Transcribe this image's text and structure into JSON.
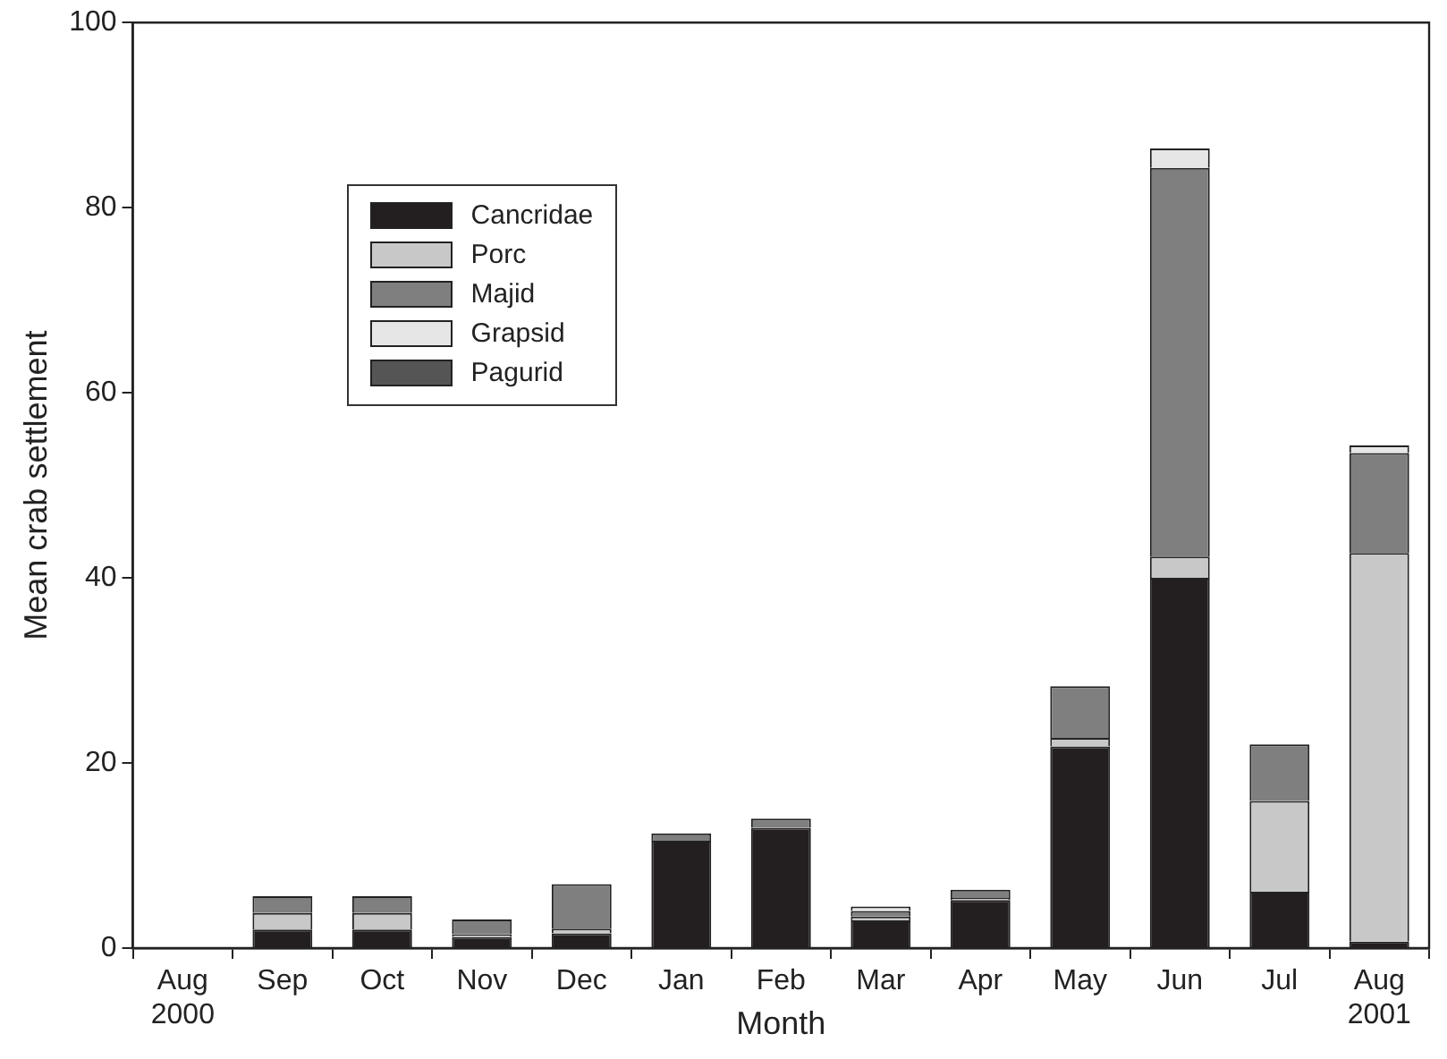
{
  "chart_data": {
    "type": "bar",
    "stacked": true,
    "xlabel": "Month",
    "ylabel": "Mean crab settlement",
    "categories": [
      "Aug\n2000",
      "Sep",
      "Oct",
      "Nov",
      "Dec",
      "Jan",
      "Feb",
      "Mar",
      "Apr",
      "May",
      "Jun",
      "Jul",
      "Aug\n2001"
    ],
    "series": [
      {
        "name": "Cancridae",
        "color": "#231f20",
        "values": [
          0,
          2,
          2,
          1.2,
          1.6,
          11.6,
          13,
          3,
          5.2,
          21.8,
          40,
          6.1,
          0.7
        ]
      },
      {
        "name": "Porc",
        "color": "#c8c8c8",
        "values": [
          0,
          1.8,
          1.8,
          0.3,
          0.5,
          0,
          0,
          0.4,
          0.2,
          0.9,
          2.3,
          9.8,
          42
        ]
      },
      {
        "name": "Majid",
        "color": "#7f7f7f",
        "values": [
          0,
          1.8,
          1.8,
          1.6,
          4.8,
          0.8,
          1,
          0.6,
          0.9,
          5.6,
          42,
          6.1,
          10.8
        ]
      },
      {
        "name": "Grapsid",
        "color": "#e6e6e6",
        "values": [
          0,
          0,
          0,
          0,
          0,
          0,
          0,
          0.5,
          0,
          0,
          2.1,
          0,
          0.8
        ]
      },
      {
        "name": "Pagurid",
        "color": "#555555",
        "values": [
          0,
          0,
          0,
          0,
          0,
          0,
          0,
          0,
          0,
          0,
          0,
          0,
          0
        ]
      }
    ],
    "ylim": [
      0,
      100
    ],
    "yticks": [
      0,
      20,
      40,
      60,
      80,
      100
    ],
    "grid": false,
    "legend": "top left"
  }
}
